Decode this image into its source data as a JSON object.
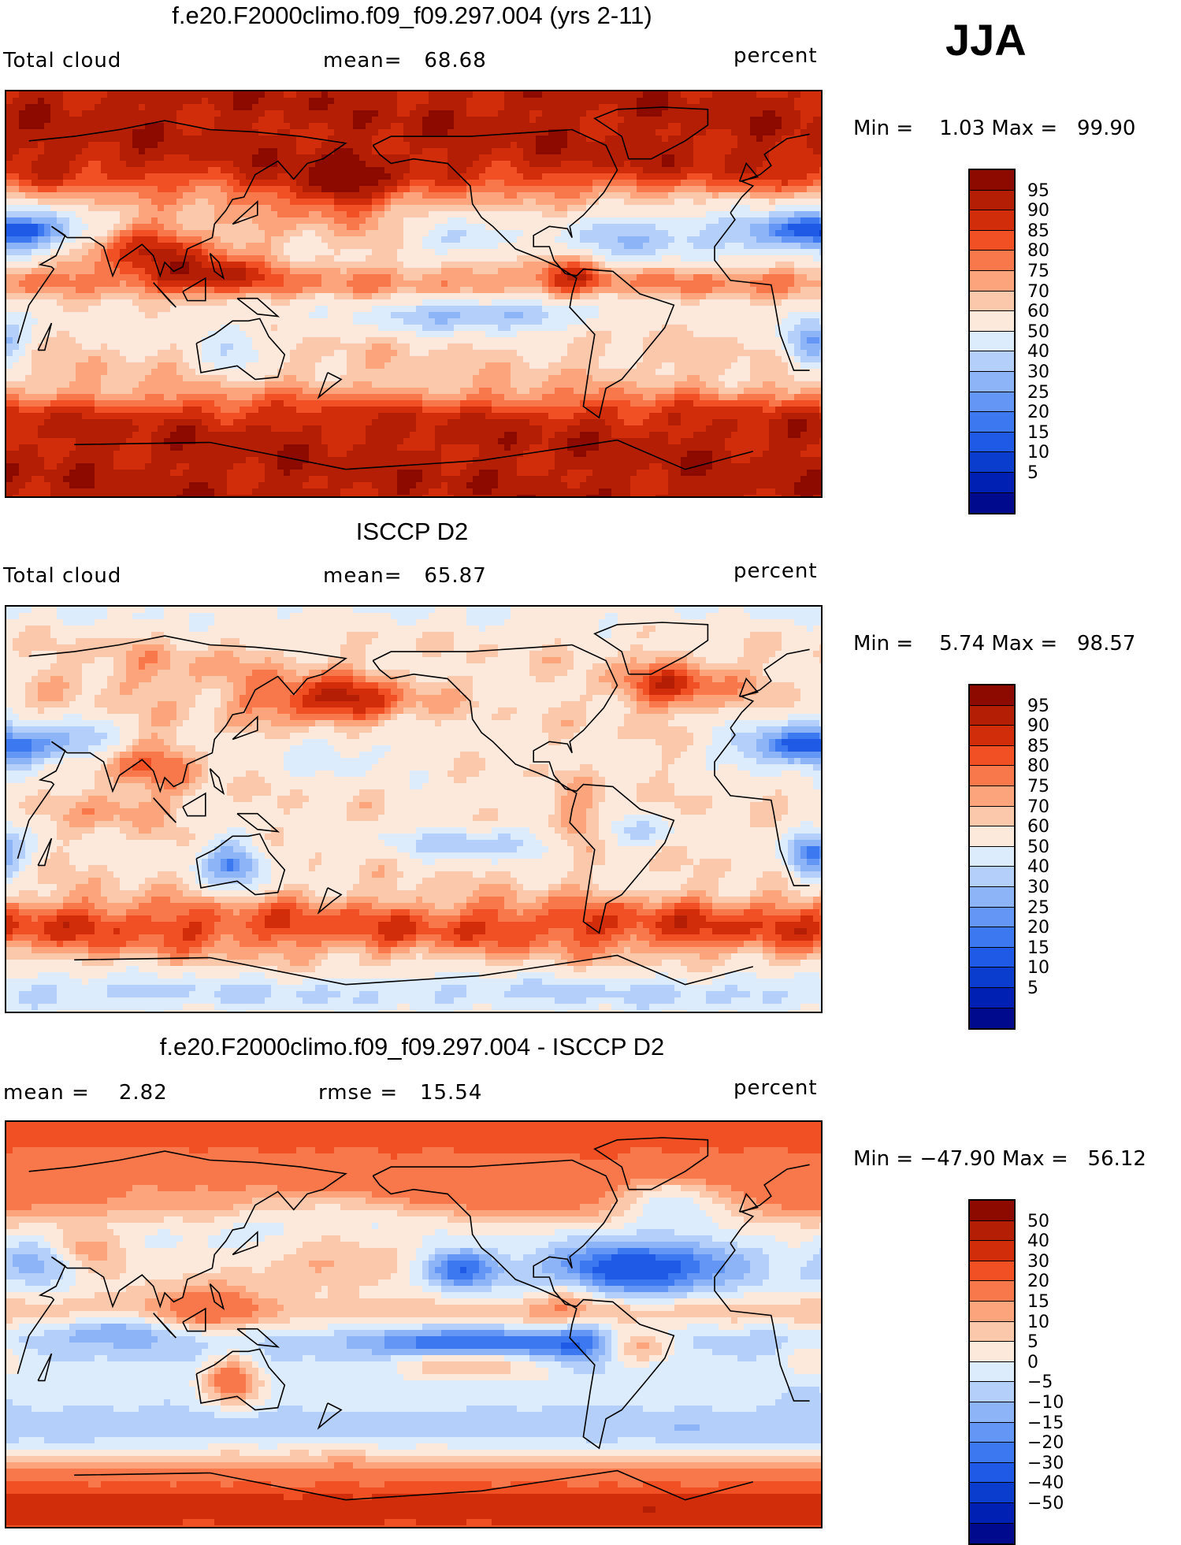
{
  "season": "JJA",
  "palette_abs": [
    "#000a8c",
    "#0020b4",
    "#0a3ccd",
    "#1e5ae6",
    "#3c78f0",
    "#6496f5",
    "#8cb4f7",
    "#b4d0fa",
    "#dcecfd",
    "#fde9dc",
    "#fcc8ac",
    "#fca57c",
    "#f9784b",
    "#f05023",
    "#d22d0a",
    "#b41e05",
    "#8c0a00"
  ],
  "palette_diff": [
    "#000a8c",
    "#0020b4",
    "#0a3ccd",
    "#1e5ae6",
    "#3c78f0",
    "#6496f5",
    "#8cb4f7",
    "#b4d0fa",
    "#dcecfd",
    "#fde9dc",
    "#fcc8ac",
    "#fca57c",
    "#f9784b",
    "#f05023",
    "#d22d0a",
    "#b41e05",
    "#8c0a00"
  ],
  "panels": [
    {
      "title": "f.e20.F2000climo.f09_f09.297.004 (yrs 2-11)",
      "left_label": "Total cloud",
      "mid_label": "mean=   68.68",
      "right_label": "percent",
      "minmax": "Min =    1.03 Max =   99.90",
      "ticks": [
        "95",
        "90",
        "85",
        "80",
        "75",
        "70",
        "60",
        "50",
        "40",
        "30",
        "25",
        "20",
        "15",
        "10",
        "5"
      ],
      "field": "model"
    },
    {
      "title": "ISCCP D2",
      "left_label": "Total cloud",
      "mid_label": "mean=   65.87",
      "right_label": "percent",
      "minmax": "Min =    5.74 Max =   98.57",
      "ticks": [
        "95",
        "90",
        "85",
        "80",
        "75",
        "70",
        "60",
        "50",
        "40",
        "30",
        "25",
        "20",
        "15",
        "10",
        "5"
      ],
      "field": "obs"
    },
    {
      "title": "f.e20.F2000climo.f09_f09.297.004 - ISCCP D2",
      "left_label": "mean =    2.82",
      "mid_label": "rmse =   15.54",
      "right_label": "percent",
      "minmax": "Min = −47.90 Max =   56.12",
      "ticks": [
        "50",
        "40",
        "30",
        "20",
        "15",
        "10",
        "5",
        "0",
        "−5",
        "−10",
        "−15",
        "−20",
        "−30",
        "−40",
        "−50"
      ],
      "field": "diff"
    }
  ]
}
